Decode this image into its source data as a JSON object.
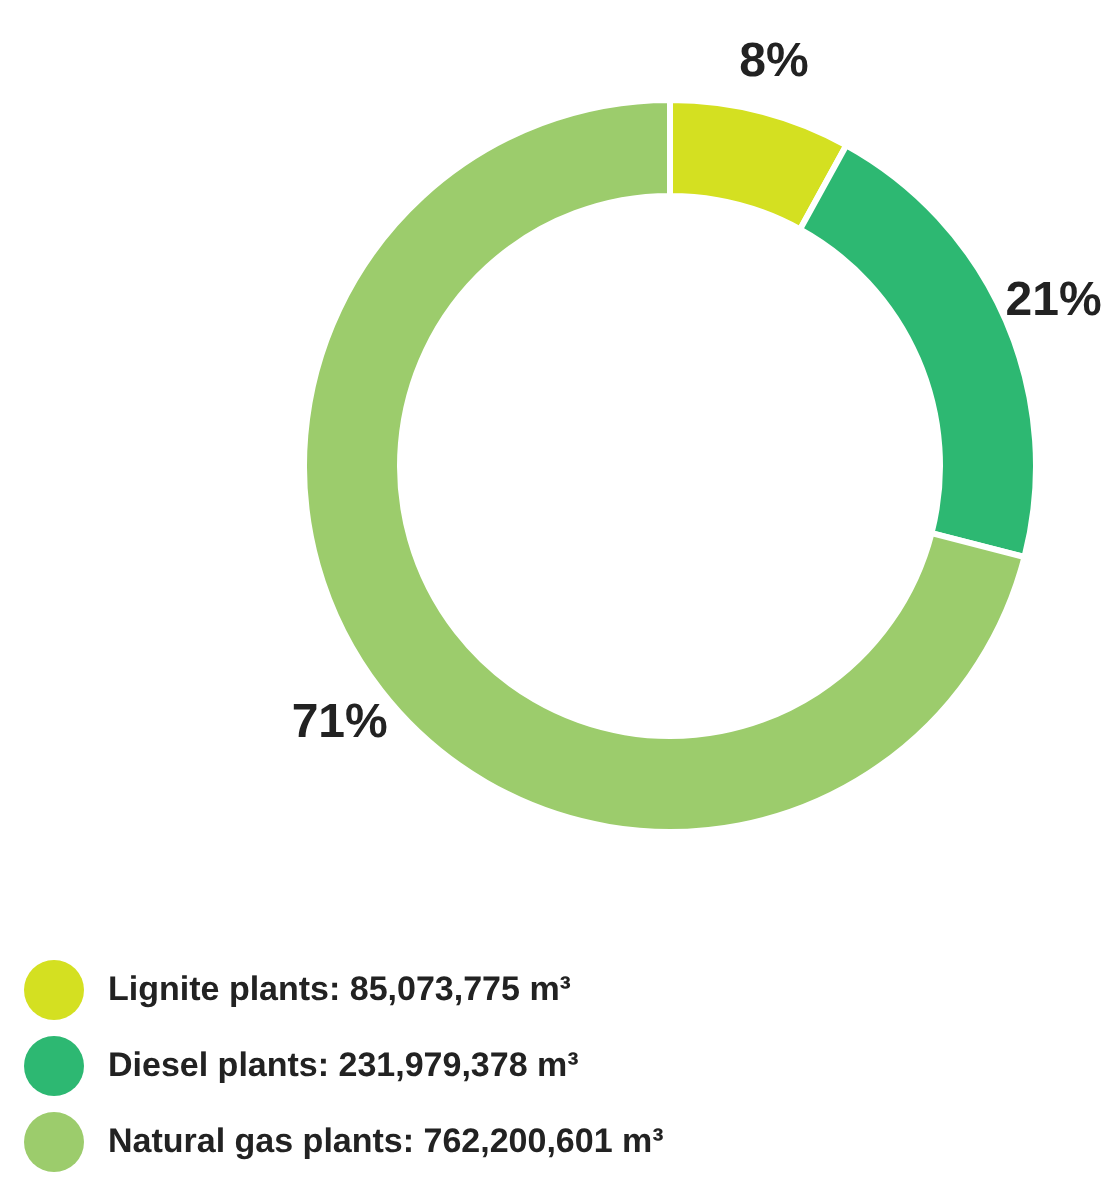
{
  "chart_data": {
    "type": "donut",
    "categories": [
      "Lignite plants: 85,073,775 m³",
      "Diesel plants: 231,979,378 m³",
      "Natural gas plants: 762,200,601 m³"
    ],
    "values": [
      8,
      21,
      71
    ],
    "colors": [
      "#d4e021",
      "#2db872",
      "#9ccc6c"
    ],
    "value_labels": [
      "8%",
      "21%",
      "71%"
    ],
    "legend": "bottom"
  }
}
